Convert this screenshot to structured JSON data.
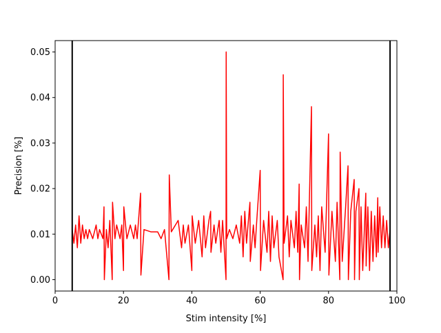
{
  "chart_data": {
    "type": "line",
    "xlabel": "Stim intensity [%]",
    "ylabel": "Precision [%]",
    "xlim": [
      0,
      100
    ],
    "ylim": [
      -0.0025,
      0.0525
    ],
    "xticks": [
      0,
      20,
      40,
      60,
      80,
      100
    ],
    "yticks": [
      {
        "value": 0,
        "label": "0.00"
      },
      {
        "value": 0.01,
        "label": "0.01"
      },
      {
        "value": 0.02,
        "label": "0.02"
      },
      {
        "value": 0.03,
        "label": "0.03"
      },
      {
        "value": 0.04,
        "label": "0.04"
      },
      {
        "value": 0.05,
        "label": "0.05"
      }
    ],
    "vlines": [
      5,
      98
    ],
    "vline_color": "#000000",
    "series": [
      {
        "color": "#ff0000",
        "x": [
          5,
          5.5,
          6,
          6.5,
          7,
          7.5,
          8,
          8.5,
          9,
          9.5,
          10,
          11,
          12,
          12.5,
          13,
          14,
          14.3,
          14.4,
          15,
          15.5,
          16,
          16.7,
          16.8,
          17.5,
          18,
          19,
          19.5,
          20,
          20.1,
          21,
          22,
          23,
          23.5,
          24,
          25,
          25.1,
          26,
          28,
          30,
          31,
          32,
          33.3,
          33.4,
          34,
          36,
          37,
          37.5,
          38,
          39,
          40,
          40.1,
          41,
          42,
          43,
          43.5,
          44,
          45,
          45.5,
          45.6,
          46.5,
          47,
          48,
          48.5,
          49,
          50,
          50.05,
          50.2,
          51,
          52,
          53,
          54,
          54.5,
          55,
          55.5,
          56,
          57,
          57.1,
          58,
          58.5,
          59,
          60,
          60.1,
          61,
          62,
          62.5,
          63,
          63.5,
          64,
          65,
          65.5,
          66.7,
          66.75,
          67,
          68,
          68.5,
          69,
          70,
          70.5,
          71,
          71.4,
          71.5,
          72,
          73,
          73.5,
          74,
          75,
          75.1,
          76,
          76.5,
          77,
          77.5,
          78,
          79,
          80,
          80.1,
          81,
          82,
          82.5,
          83.3,
          83.4,
          84,
          85,
          85.7,
          85.8,
          86.5,
          87.5,
          87.6,
          88,
          88.9,
          89,
          89.5,
          90,
          90.9,
          91,
          91.5,
          92,
          92.5,
          93,
          93.5,
          94,
          94.4,
          94.5,
          95,
          95.5,
          96,
          96.5,
          97,
          97.5,
          98
        ],
        "values": [
          0.011,
          0.008,
          0.012,
          0.007,
          0.014,
          0.008,
          0.012,
          0.009,
          0.011,
          0.009,
          0.011,
          0.009,
          0.012,
          0.009,
          0.011,
          0.009,
          0.016,
          0,
          0.011,
          0.007,
          0.013,
          0,
          0.017,
          0.009,
          0.012,
          0.009,
          0.012,
          0.002,
          0.016,
          0.009,
          0.012,
          0.009,
          0.012,
          0.009,
          0.019,
          0.001,
          0.011,
          0.0105,
          0.0105,
          0.009,
          0.011,
          0,
          0.023,
          0.0105,
          0.013,
          0.007,
          0.012,
          0.008,
          0.012,
          0.002,
          0.014,
          0.008,
          0.013,
          0.005,
          0.014,
          0.007,
          0.013,
          0.015,
          0.006,
          0.012,
          0.008,
          0.013,
          0.006,
          0.013,
          0,
          0.05,
          0.009,
          0.011,
          0.009,
          0.012,
          0.008,
          0.014,
          0.005,
          0.015,
          0.008,
          0.017,
          0.004,
          0.012,
          0.007,
          0.013,
          0.024,
          0.002,
          0.013,
          0.006,
          0.015,
          0.004,
          0.014,
          0.007,
          0.013,
          0.005,
          0,
          0.045,
          0.008,
          0.014,
          0.005,
          0.013,
          0.007,
          0.015,
          0.006,
          0.021,
          0,
          0.012,
          0.007,
          0.016,
          0.004,
          0.038,
          0.002,
          0.012,
          0.005,
          0.014,
          0.002,
          0.016,
          0.006,
          0.032,
          0.001,
          0.015,
          0.004,
          0.017,
          0,
          0.028,
          0.004,
          0.016,
          0.025,
          0,
          0.015,
          0.022,
          0,
          0.015,
          0.02,
          0,
          0.016,
          0.002,
          0.019,
          0.003,
          0.016,
          0.002,
          0.015,
          0.004,
          0.014,
          0.005,
          0.018,
          0.006,
          0.016,
          0.007,
          0.014,
          0.007,
          0.013,
          0.007,
          0.011
        ]
      }
    ]
  }
}
